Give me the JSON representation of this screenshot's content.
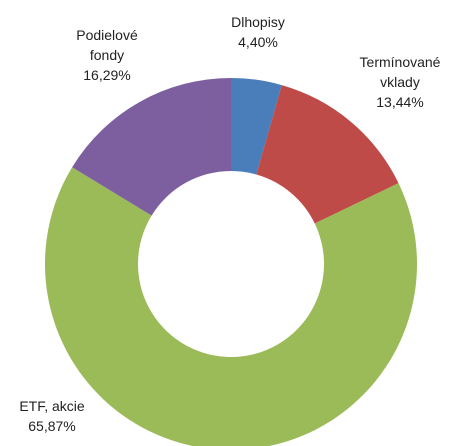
{
  "chart_data": {
    "type": "donut",
    "categories": [
      "Dlhopisy",
      "Termínované vklady",
      "ETF, akcie",
      "Podielové fondy"
    ],
    "values": [
      4.4,
      13.44,
      65.87,
      16.29
    ],
    "value_labels": [
      "4,40%",
      "13,44%",
      "65,87%",
      "16,29%"
    ],
    "colors": [
      "#4a7ebb",
      "#be4b48",
      "#9bbb59",
      "#7d5fa0"
    ]
  }
}
